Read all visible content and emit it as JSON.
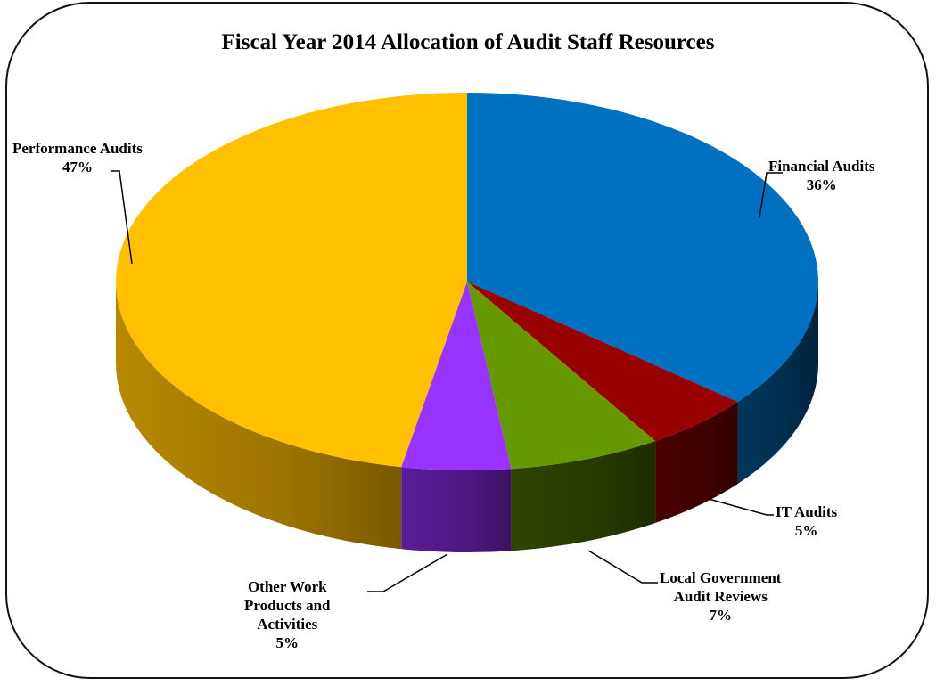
{
  "chart_data": {
    "type": "pie",
    "title": "Fiscal Year 2014 Allocation of Audit Staff Resources",
    "slices": [
      {
        "label": "Financial Audits",
        "percent_label": "36%",
        "value": 36,
        "color": "#0070C0",
        "side_color": "#00365c"
      },
      {
        "label": "IT Audits",
        "percent_label": "5%",
        "value": 5,
        "color": "#990000",
        "side_color": "#4a0000"
      },
      {
        "label": "Local Government Audit Reviews",
        "percent_label": "7%",
        "value": 7,
        "color": "#669900",
        "side_color": "#2e4400"
      },
      {
        "label": "Other Work Products and Activities",
        "percent_label": "5%",
        "value": 5,
        "color": "#9933FF",
        "side_color": "#5a1c99"
      },
      {
        "label": "Performance Audits",
        "percent_label": "47%",
        "value": 47,
        "color": "#FFC000",
        "side_color": "#b88800"
      }
    ],
    "legend": "none",
    "data_labels": "outside with leader lines"
  },
  "labels": {
    "financial": {
      "line1": "Financial Audits",
      "line2": "36%"
    },
    "it": {
      "line1": "IT Audits",
      "line2": "5%"
    },
    "local": {
      "line1": "Local Government",
      "line2": "Audit Reviews",
      "line3": "7%"
    },
    "other": {
      "line1": "Other Work",
      "line2": "Products and",
      "line3": "Activities",
      "line4": "5%"
    },
    "performance": {
      "line1": "Performance Audits",
      "line2": "47%"
    }
  }
}
